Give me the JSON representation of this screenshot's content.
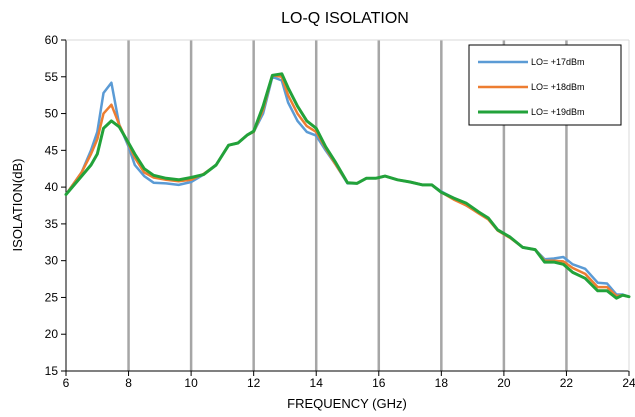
{
  "chart_data": {
    "type": "line",
    "title": "LO-Q ISOLATION",
    "xlabel": "FREQUENCY (GHz)",
    "ylabel": "ISOLATION(dB)",
    "xlim": [
      6,
      24
    ],
    "ylim": [
      15,
      60
    ],
    "xticks": [
      6,
      8,
      10,
      12,
      14,
      16,
      18,
      20,
      22,
      24
    ],
    "yticks": [
      15,
      20,
      25,
      30,
      35,
      40,
      45,
      50,
      55,
      60
    ],
    "grid": "vertical",
    "legend_position": "top-right",
    "series": [
      {
        "name": "LO= +17dBm",
        "color": "#5b9bd5",
        "x": [
          6,
          6.5,
          6.8,
          7.0,
          7.2,
          7.45,
          7.7,
          8.0,
          8.2,
          8.5,
          8.8,
          9.2,
          9.6,
          10,
          10.4,
          10.8,
          11.2,
          11.5,
          11.8,
          12,
          12.3,
          12.6,
          12.9,
          13.1,
          13.4,
          13.7,
          14.0,
          14.3,
          14.6,
          15.0,
          15.3,
          15.6,
          15.9,
          16.2,
          16.6,
          17.0,
          17.4,
          17.7,
          18.0,
          18.4,
          18.8,
          19.2,
          19.5,
          19.8,
          20.2,
          20.6,
          21.0,
          21.3,
          21.6,
          21.9,
          22.2,
          22.6,
          23.0,
          23.3,
          23.6,
          23.8,
          24.0
        ],
        "y": [
          39,
          42,
          45,
          47.5,
          52.8,
          54.2,
          48.5,
          45.5,
          43,
          41.5,
          40.6,
          40.5,
          40.3,
          40.7,
          41.7,
          43,
          45.7,
          46,
          47.1,
          47.5,
          50,
          55,
          54.5,
          51.5,
          49,
          47.5,
          47,
          45,
          43.2,
          40.5,
          40.5,
          41.2,
          41.2,
          41.5,
          41.0,
          40.7,
          40.3,
          40.3,
          39.4,
          38.5,
          37.5,
          36.5,
          35.7,
          34.2,
          33.2,
          31.8,
          31.5,
          30.2,
          30.3,
          30.5,
          29.5,
          28.9,
          27.0,
          26.9,
          25.4,
          25.4,
          25.1
        ]
      },
      {
        "name": "LO= +18dBm",
        "color": "#ed7d31",
        "x": [
          6,
          6.5,
          6.8,
          7.0,
          7.2,
          7.45,
          7.7,
          8.0,
          8.2,
          8.5,
          8.8,
          9.2,
          9.6,
          10,
          10.4,
          10.8,
          11.2,
          11.5,
          11.8,
          12,
          12.3,
          12.6,
          12.9,
          13.1,
          13.4,
          13.7,
          14.0,
          14.3,
          14.6,
          15.0,
          15.3,
          15.6,
          15.9,
          16.2,
          16.6,
          17.0,
          17.4,
          17.7,
          18.0,
          18.4,
          18.8,
          19.2,
          19.5,
          19.8,
          20.2,
          20.6,
          21.0,
          21.3,
          21.6,
          21.9,
          22.2,
          22.6,
          23.0,
          23.3,
          23.6,
          23.8,
          24.0
        ],
        "y": [
          39,
          42,
          44.5,
          46.5,
          50,
          51.2,
          48.5,
          45.8,
          44,
          42,
          41.3,
          41.0,
          40.8,
          41.0,
          41.8,
          43,
          45.7,
          46,
          47.1,
          47.5,
          50.5,
          55.2,
          55,
          52.5,
          50,
          48.3,
          47.5,
          45.3,
          43.2,
          40.6,
          40.5,
          41.2,
          41.2,
          41.5,
          41.0,
          40.7,
          40.3,
          40.3,
          39.3,
          38.3,
          37.5,
          36.4,
          35.6,
          34.1,
          33.1,
          31.8,
          31.5,
          30.0,
          30.0,
          29.9,
          29.0,
          28.2,
          26.4,
          26.4,
          25.2,
          25.3,
          25.1
        ]
      },
      {
        "name": "LO= +19dBm",
        "color": "#22a23a",
        "x": [
          6,
          6.5,
          6.8,
          7.0,
          7.2,
          7.45,
          7.7,
          8.0,
          8.2,
          8.5,
          8.8,
          9.2,
          9.6,
          10,
          10.4,
          10.8,
          11.2,
          11.5,
          11.8,
          12,
          12.3,
          12.6,
          12.9,
          13.1,
          13.4,
          13.7,
          14.0,
          14.3,
          14.6,
          15.0,
          15.3,
          15.6,
          15.9,
          16.2,
          16.6,
          17.0,
          17.4,
          17.7,
          18.0,
          18.4,
          18.8,
          19.2,
          19.5,
          19.8,
          20.2,
          20.6,
          21.0,
          21.3,
          21.6,
          21.9,
          22.2,
          22.6,
          23.0,
          23.3,
          23.6,
          23.8,
          24.0
        ],
        "y": [
          39,
          41.5,
          43,
          44.5,
          48,
          49,
          48.2,
          46,
          44.5,
          42.5,
          41.6,
          41.2,
          41.0,
          41.3,
          41.7,
          43,
          45.7,
          46,
          47.1,
          47.6,
          51,
          55.2,
          55.4,
          53.5,
          51,
          49,
          48,
          45.5,
          43.5,
          40.6,
          40.5,
          41.2,
          41.2,
          41.5,
          41.0,
          40.7,
          40.3,
          40.3,
          39.3,
          38.5,
          37.8,
          36.6,
          35.8,
          34.2,
          33.2,
          31.8,
          31.5,
          29.8,
          29.8,
          29.5,
          28.4,
          27.6,
          25.9,
          25.9,
          24.9,
          25.3,
          25.1
        ]
      }
    ]
  }
}
